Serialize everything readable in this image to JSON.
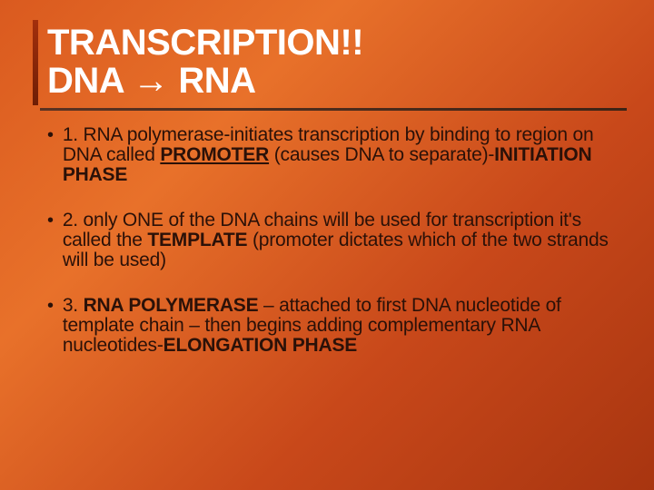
{
  "colors": {
    "background_gradient": [
      "#da5a1f",
      "#e8712a",
      "#c8481a",
      "#a83510"
    ],
    "title_text": "#ffffff",
    "body_text": "#2b1108",
    "accent_bar_gradient": [
      "#a32f0c",
      "#6e1e05"
    ],
    "rule_gradient": [
      "#5a3322",
      "#3d2416"
    ]
  },
  "title": {
    "line1": "TRANSCRIPTION!!",
    "line2_part1": "DNA ",
    "line2_arrow": "→",
    "line2_part2": " RNA"
  },
  "bullets": [
    {
      "segments": [
        {
          "t": "1. RNA polymerase-initiates transcription by binding to region on DNA called ",
          "b": false,
          "u": false
        },
        {
          "t": "PROMOTER",
          "b": true,
          "u": true
        },
        {
          "t": " (causes DNA to separate)-",
          "b": false,
          "u": false
        },
        {
          "t": "INITIATION PHASE",
          "b": true,
          "u": false
        }
      ]
    },
    {
      "segments": [
        {
          "t": "2. only ONE of the DNA chains will be used for transcription it's called the ",
          "b": false,
          "u": false
        },
        {
          "t": "TEMPLATE",
          "b": true,
          "u": false
        },
        {
          "t": " (promoter dictates which of the two strands will be used)",
          "b": false,
          "u": false
        }
      ]
    },
    {
      "segments": [
        {
          "t": "3. ",
          "b": false,
          "u": false
        },
        {
          "t": "RNA POLYMERASE",
          "b": true,
          "u": false
        },
        {
          "t": " – attached to first DNA nucleotide of template chain – then begins adding complementary RNA nucleotides-",
          "b": false,
          "u": false
        },
        {
          "t": "ELONGATION PHASE",
          "b": true,
          "u": false
        }
      ]
    }
  ],
  "bullet_marker": "•"
}
